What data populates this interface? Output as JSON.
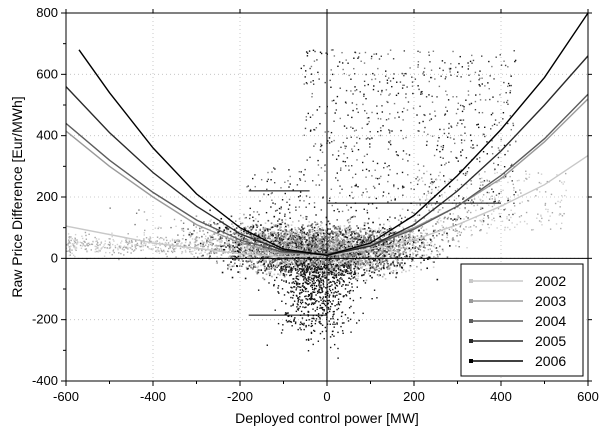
{
  "chart_data": {
    "type": "scatter",
    "title": "",
    "xlabel": "Deployed control power [MW]",
    "ylabel": "Raw Price Difference [Eur/MWh]",
    "xlim": [
      -600,
      600
    ],
    "ylim": [
      -400,
      800
    ],
    "xticks": [
      "-600",
      "-400",
      "-200",
      "0",
      "200",
      "400",
      "600"
    ],
    "yticks": [
      "-400",
      "-200",
      "0",
      "200",
      "400",
      "600",
      "800"
    ],
    "grid": true,
    "legend_position": "bottom-right",
    "series": [
      {
        "name": "2002",
        "color": "#c8c8c8",
        "marker": "square",
        "fit_x": [
          -600,
          -400,
          -200,
          -100,
          0,
          100,
          200,
          300,
          400,
          500,
          600
        ],
        "fit_y": [
          105,
          50,
          15,
          5,
          10,
          30,
          60,
          110,
          170,
          240,
          335
        ]
      },
      {
        "name": "2003",
        "color": "#9a9a9a",
        "marker": "circle",
        "fit_x": [
          -600,
          -500,
          -400,
          -300,
          -200,
          -100,
          0,
          100,
          200,
          300,
          400,
          500,
          600
        ],
        "fit_y": [
          415,
          300,
          200,
          110,
          50,
          15,
          15,
          45,
          100,
          170,
          260,
          380,
          520
        ]
      },
      {
        "name": "2004",
        "color": "#5c5c5c",
        "marker": "triangle",
        "fit_x": [
          -600,
          -500,
          -400,
          -300,
          -200,
          -100,
          0,
          100,
          200,
          300,
          400,
          500,
          600
        ],
        "fit_y": [
          440,
          320,
          215,
          125,
          60,
          20,
          15,
          40,
          95,
          170,
          270,
          390,
          535
        ]
      },
      {
        "name": "2005",
        "color": "#2a2a2a",
        "marker": "triangle-down",
        "fit_x": [
          -600,
          -500,
          -400,
          -300,
          -200,
          -100,
          0,
          100,
          200,
          300,
          400,
          500,
          600
        ],
        "fit_y": [
          560,
          410,
          280,
          170,
          80,
          25,
          10,
          40,
          110,
          220,
          350,
          500,
          660
        ]
      },
      {
        "name": "2006",
        "color": "#000000",
        "marker": "diamond",
        "fit_x": [
          -570,
          -500,
          -400,
          -300,
          -200,
          -100,
          0,
          100,
          200,
          300,
          400,
          500,
          600
        ],
        "fit_y": [
          680,
          540,
          360,
          210,
          100,
          30,
          10,
          50,
          140,
          270,
          420,
          590,
          800
        ]
      }
    ],
    "reference_lines": {
      "horizontal_segments": [
        {
          "y": 180,
          "x_from": 0,
          "x_to": 400
        },
        {
          "y": 220,
          "x_from": -180,
          "x_to": -40
        },
        {
          "y": -185,
          "x_from": -180,
          "x_to": 0
        }
      ],
      "vertical_at_x": 0
    }
  }
}
